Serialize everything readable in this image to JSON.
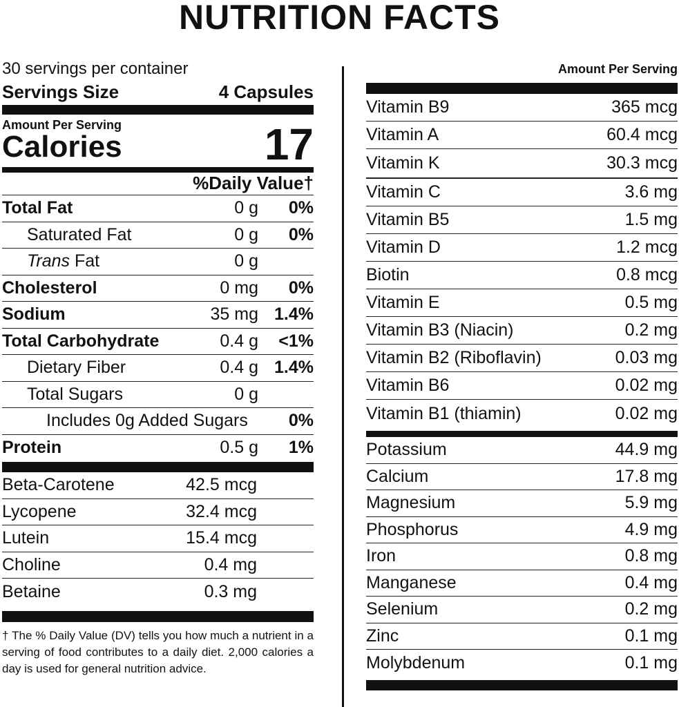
{
  "title": "NUTRITION FACTS",
  "servings_per_container": "30 servings per container",
  "serving_size_label": "Servings Size",
  "serving_size_value": "4 Capsules",
  "amount_per_serving": "Amount Per Serving",
  "calories_label": "Calories",
  "calories_value": "17",
  "daily_value_header": "%Daily Value†",
  "nutrients": [
    {
      "name": "Total Fat",
      "amount": "0 g",
      "dv": "0%",
      "bold": true,
      "indent": 0
    },
    {
      "name": "Saturated Fat",
      "amount": "0 g",
      "dv": "0%",
      "bold": false,
      "indent": 1
    },
    {
      "name": "Trans",
      "name_suffix": " Fat",
      "amount": "0 g",
      "dv": "",
      "bold": false,
      "indent": 1
    },
    {
      "name": "Cholesterol",
      "amount": "0 mg",
      "dv": "0%",
      "bold": true,
      "indent": 0
    },
    {
      "name": "Sodium",
      "amount": "35 mg",
      "dv": "1.4%",
      "bold": true,
      "indent": 0
    },
    {
      "name": "Total Carbohydrate",
      "amount": "0.4 g",
      "dv": "<1%",
      "bold": true,
      "indent": 0
    },
    {
      "name": "Dietary Fiber",
      "amount": "0.4 g",
      "dv": "1.4%",
      "bold": false,
      "indent": 1
    },
    {
      "name": "Total Sugars",
      "amount": "0 g",
      "dv": "",
      "bold": false,
      "indent": 1
    },
    {
      "name": "Includes 0g Added Sugars",
      "amount": "",
      "dv": "0%",
      "bold": false,
      "indent": 2
    },
    {
      "name": "Protein",
      "amount": "0.5 g",
      "dv": "1%",
      "bold": true,
      "indent": 0
    }
  ],
  "other_nutrients": [
    {
      "name": "Beta-Carotene",
      "amount": "42.5 mcg"
    },
    {
      "name": "Lycopene",
      "amount": "32.4 mcg"
    },
    {
      "name": "Lutein",
      "amount": "15.4 mcg"
    },
    {
      "name": "Choline",
      "amount": "0.4 mg"
    },
    {
      "name": "Betaine",
      "amount": "0.3 mg"
    }
  ],
  "footnote": "† The % Daily Value (DV) tells you how much a nutrient in a serving of food contributes to a daily diet. 2,000 calories a day is used for general nutrition advice.",
  "right_header": "Amount Per Serving",
  "vitamins_a": [
    {
      "name": "Vitamin B9",
      "amount": "365 mcg"
    },
    {
      "name": "Vitamin A",
      "amount": "60.4 mcg"
    },
    {
      "name": "Vitamin K",
      "amount": "30.3 mcg"
    }
  ],
  "vitamins_b": [
    {
      "name": "Vitamin C",
      "amount": "3.6 mg"
    },
    {
      "name": "Vitamin B5",
      "amount": "1.5 mg"
    },
    {
      "name": "Vitamin D",
      "amount": "1.2 mcg"
    },
    {
      "name": "Biotin",
      "amount": "0.8 mcg"
    },
    {
      "name": "Vitamin E",
      "amount": "0.5 mg"
    },
    {
      "name": "Vitamin B3 (Niacin)",
      "amount": "0.2 mg"
    },
    {
      "name": "Vitamin B2 (Riboflavin)",
      "amount": "0.03 mg"
    },
    {
      "name": "Vitamin B6",
      "amount": "0.02 mg"
    },
    {
      "name": "Vitamin B1 (thiamin)",
      "amount": "0.02 mg"
    }
  ],
  "minerals": [
    {
      "name": "Potassium",
      "amount": "44.9 mg"
    },
    {
      "name": "Calcium",
      "amount": "17.8 mg"
    },
    {
      "name": "Magnesium",
      "amount": "5.9 mg"
    },
    {
      "name": "Phosphorus",
      "amount": "4.9 mg"
    },
    {
      "name": "Iron",
      "amount": "0.8 mg"
    },
    {
      "name": "Manganese",
      "amount": "0.4 mg"
    },
    {
      "name": "Selenium",
      "amount": "0.2 mg"
    },
    {
      "name": "Zinc",
      "amount": "0.1 mg"
    },
    {
      "name": "Molybdenum",
      "amount": "0.1 mg"
    }
  ]
}
